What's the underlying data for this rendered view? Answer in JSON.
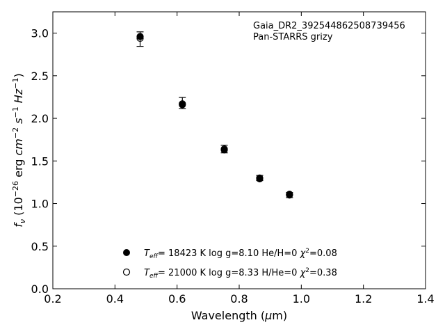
{
  "chart_data": {
    "type": "scatter",
    "annotation": {
      "line1": "Gaia_DR2_392544862508739456",
      "line2": "Pan-STARRS grizy"
    },
    "xlabel": {
      "main": "Wavelength (",
      "mu": "μ",
      "end": "m)"
    },
    "ylabel": {
      "f": "f",
      "nu": "ν",
      "open": " (10",
      "e1": "−26",
      "erg": " erg ",
      "cm": "cm",
      "e2": "−2",
      "s": " s",
      "e3": "−1",
      "hz": " Hz",
      "e4": "−1",
      "close": ")"
    },
    "xlim": [
      0.2,
      1.4
    ],
    "ylim": [
      0.0,
      3.25
    ],
    "xticks": [
      0.2,
      0.4,
      0.6,
      0.8,
      1.0,
      1.2,
      1.4
    ],
    "xtick_labels": [
      "0.2",
      "0.4",
      "0.6",
      "0.8",
      "1.0",
      "1.2",
      "1.4"
    ],
    "yticks": [
      0.0,
      0.5,
      1.0,
      1.5,
      2.0,
      2.5,
      3.0
    ],
    "ytick_labels": [
      "0.0",
      "0.5",
      "1.0",
      "1.5",
      "2.0",
      "2.5",
      "3.0"
    ],
    "grid": false,
    "observed": {
      "x": [
        0.481,
        0.617,
        0.752,
        0.866,
        0.962
      ],
      "y": [
        2.93,
        2.18,
        1.64,
        1.3,
        1.1
      ],
      "err": [
        0.085,
        0.065,
        0.045,
        0.03,
        0.03
      ]
    },
    "series": [
      {
        "marker": "filled",
        "x": [
          0.481,
          0.617,
          0.752,
          0.866,
          0.962
        ],
        "y": [
          2.96,
          2.16,
          1.63,
          1.29,
          1.11
        ],
        "label": {
          "t": "T",
          "eff": "eff",
          "rest": "= 18423 K  log g=8.10  He/H=0  ",
          "chi": "χ",
          "sq": "2",
          "val": "=0.08"
        }
      },
      {
        "marker": "open",
        "x": [
          0.481,
          0.617,
          0.752,
          0.866,
          0.962
        ],
        "y": [
          2.94,
          2.17,
          1.64,
          1.3,
          1.1
        ],
        "label": {
          "t": "T",
          "eff": "eff",
          "rest": "= 21000 K  log g=8.33  H/He=0  ",
          "chi": "χ",
          "sq": "2",
          "val": "=0.38"
        }
      }
    ],
    "legend_position": "lower-center",
    "colors": {
      "axes": "#000000",
      "marker": "#000000"
    }
  }
}
